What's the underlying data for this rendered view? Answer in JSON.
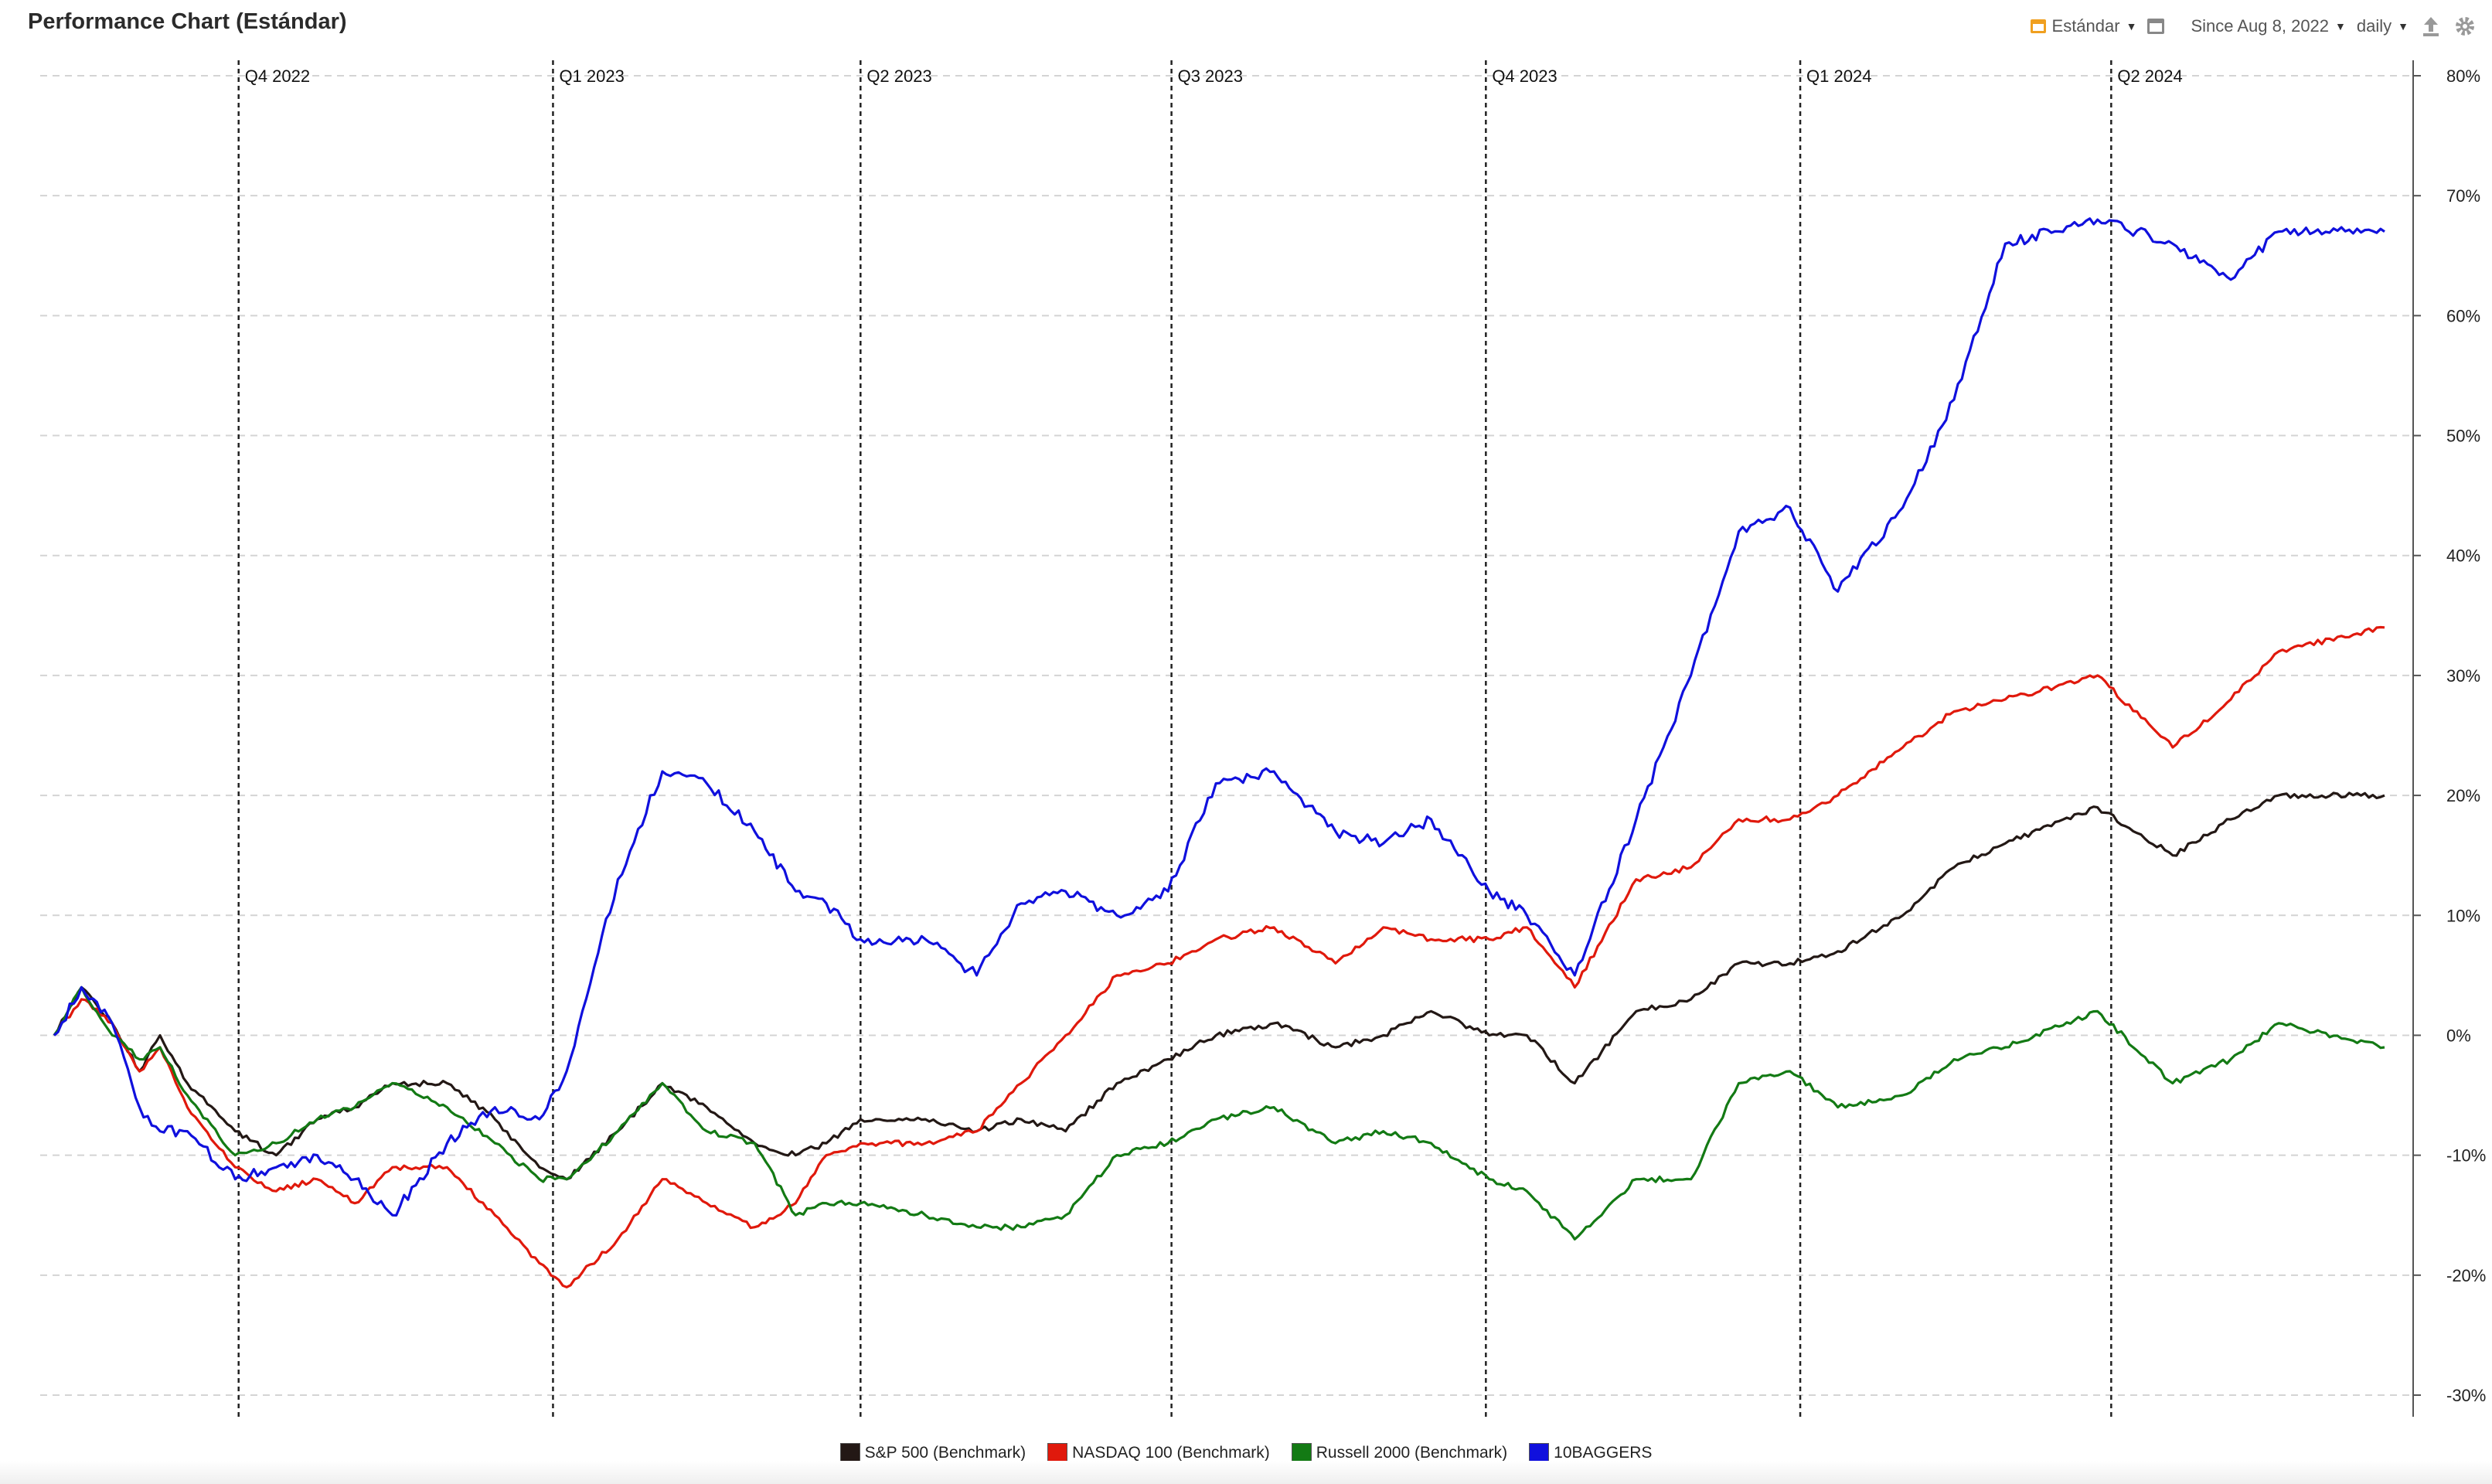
{
  "header": {
    "title": "Performance Chart (Estándar)",
    "layout_label": "Estándar",
    "range_label": "Since Aug 8, 2022",
    "interval_label": "daily"
  },
  "colors": {
    "sp500": "#231815",
    "nasdaq": "#e0190c",
    "russell": "#137a14",
    "tenbaggers": "#1010dd",
    "accent": "#f0a020"
  },
  "chart_data": {
    "type": "line",
    "x_start": "2022-08-08",
    "x_end": "2024-06-20",
    "ylim": [
      -30,
      80
    ],
    "y_ticks": [
      80,
      70,
      60,
      50,
      40,
      30,
      20,
      10,
      0,
      -10,
      -20,
      -30
    ],
    "y_tick_labels": [
      "80%",
      "70%",
      "60%",
      "50%",
      "40%",
      "30%",
      "20%",
      "10%",
      "0%",
      "-10%",
      "-20%",
      "-30%"
    ],
    "y_axis_position": "right",
    "grid": true,
    "legend_position": "bottom",
    "quarter_markers": [
      {
        "label": "Q4 2022",
        "date": "2022-10-01"
      },
      {
        "label": "Q1 2023",
        "date": "2023-01-01"
      },
      {
        "label": "Q2 2023",
        "date": "2023-04-01"
      },
      {
        "label": "Q3 2023",
        "date": "2023-07-01"
      },
      {
        "label": "Q4 2023",
        "date": "2023-10-01"
      },
      {
        "label": "Q1 2024",
        "date": "2024-01-01"
      },
      {
        "label": "Q2 2024",
        "date": "2024-04-01"
      }
    ],
    "series": [
      {
        "name": "S&P 500  (Benchmark)",
        "color": "#231815",
        "points": [
          [
            "2022-08-08",
            0
          ],
          [
            "2022-08-16",
            4
          ],
          [
            "2022-08-25",
            1
          ],
          [
            "2022-09-02",
            -3
          ],
          [
            "2022-09-08",
            0
          ],
          [
            "2022-09-16",
            -4
          ],
          [
            "2022-09-30",
            -8
          ],
          [
            "2022-10-12",
            -10
          ],
          [
            "2022-10-24",
            -7
          ],
          [
            "2022-11-04",
            -6
          ],
          [
            "2022-11-15",
            -4
          ],
          [
            "2022-12-01",
            -4
          ],
          [
            "2022-12-15",
            -7
          ],
          [
            "2022-12-28",
            -11
          ],
          [
            "2023-01-05",
            -12
          ],
          [
            "2023-01-20",
            -8
          ],
          [
            "2023-02-02",
            -4
          ],
          [
            "2023-02-15",
            -6
          ],
          [
            "2023-03-01",
            -9
          ],
          [
            "2023-03-13",
            -10
          ],
          [
            "2023-03-22",
            -9
          ],
          [
            "2023-04-01",
            -7
          ],
          [
            "2023-04-20",
            -7
          ],
          [
            "2023-05-05",
            -8
          ],
          [
            "2023-05-18",
            -7
          ],
          [
            "2023-05-31",
            -8
          ],
          [
            "2023-06-15",
            -4
          ],
          [
            "2023-06-30",
            -2
          ],
          [
            "2023-07-14",
            0
          ],
          [
            "2023-07-31",
            1
          ],
          [
            "2023-08-18",
            -1
          ],
          [
            "2023-09-01",
            0
          ],
          [
            "2023-09-15",
            2
          ],
          [
            "2023-10-02",
            0
          ],
          [
            "2023-10-13",
            0
          ],
          [
            "2023-10-27",
            -4
          ],
          [
            "2023-11-14",
            2
          ],
          [
            "2023-11-30",
            3
          ],
          [
            "2023-12-14",
            6
          ],
          [
            "2023-12-29",
            6
          ],
          [
            "2024-01-12",
            7
          ],
          [
            "2024-01-31",
            10
          ],
          [
            "2024-02-15",
            14
          ],
          [
            "2024-03-01",
            16
          ],
          [
            "2024-03-28",
            19
          ],
          [
            "2024-04-19",
            15
          ],
          [
            "2024-05-06",
            18
          ],
          [
            "2024-05-20",
            20
          ],
          [
            "2024-06-20",
            20
          ]
        ]
      },
      {
        "name": "NASDAQ 100 (Benchmark)",
        "color": "#e0190c",
        "points": [
          [
            "2022-08-08",
            0
          ],
          [
            "2022-08-16",
            3
          ],
          [
            "2022-08-25",
            1
          ],
          [
            "2022-09-02",
            -3
          ],
          [
            "2022-09-08",
            -1
          ],
          [
            "2022-09-16",
            -6
          ],
          [
            "2022-09-30",
            -11
          ],
          [
            "2022-10-12",
            -13
          ],
          [
            "2022-10-24",
            -12
          ],
          [
            "2022-11-04",
            -14
          ],
          [
            "2022-11-15",
            -11
          ],
          [
            "2022-12-01",
            -11
          ],
          [
            "2022-12-15",
            -15
          ],
          [
            "2022-12-28",
            -19
          ],
          [
            "2023-01-05",
            -21
          ],
          [
            "2023-01-20",
            -17
          ],
          [
            "2023-02-02",
            -12
          ],
          [
            "2023-02-15",
            -14
          ],
          [
            "2023-03-01",
            -16
          ],
          [
            "2023-03-13",
            -14
          ],
          [
            "2023-03-22",
            -10
          ],
          [
            "2023-04-01",
            -9
          ],
          [
            "2023-04-20",
            -9
          ],
          [
            "2023-05-05",
            -8
          ],
          [
            "2023-05-18",
            -4
          ],
          [
            "2023-05-31",
            0
          ],
          [
            "2023-06-15",
            5
          ],
          [
            "2023-06-30",
            6
          ],
          [
            "2023-07-14",
            8
          ],
          [
            "2023-07-31",
            9
          ],
          [
            "2023-08-18",
            6
          ],
          [
            "2023-09-01",
            9
          ],
          [
            "2023-09-15",
            8
          ],
          [
            "2023-10-02",
            8
          ],
          [
            "2023-10-13",
            9
          ],
          [
            "2023-10-27",
            4
          ],
          [
            "2023-11-14",
            13
          ],
          [
            "2023-11-30",
            14
          ],
          [
            "2023-12-14",
            18
          ],
          [
            "2023-12-29",
            18
          ],
          [
            "2024-01-12",
            20
          ],
          [
            "2024-01-31",
            24
          ],
          [
            "2024-02-15",
            27
          ],
          [
            "2024-03-01",
            28
          ],
          [
            "2024-03-28",
            30
          ],
          [
            "2024-04-19",
            24
          ],
          [
            "2024-05-06",
            28
          ],
          [
            "2024-05-20",
            32
          ],
          [
            "2024-06-20",
            34
          ]
        ]
      },
      {
        "name": "Russell 2000 (Benchmark)",
        "color": "#137a14",
        "points": [
          [
            "2022-08-08",
            0
          ],
          [
            "2022-08-16",
            4
          ],
          [
            "2022-08-25",
            0
          ],
          [
            "2022-09-02",
            -2
          ],
          [
            "2022-09-08",
            -1
          ],
          [
            "2022-09-16",
            -5
          ],
          [
            "2022-09-30",
            -10
          ],
          [
            "2022-10-12",
            -9
          ],
          [
            "2022-10-24",
            -7
          ],
          [
            "2022-11-04",
            -6
          ],
          [
            "2022-11-15",
            -4
          ],
          [
            "2022-12-01",
            -6
          ],
          [
            "2022-12-15",
            -9
          ],
          [
            "2022-12-28",
            -12
          ],
          [
            "2023-01-05",
            -12
          ],
          [
            "2023-01-20",
            -8
          ],
          [
            "2023-02-02",
            -4
          ],
          [
            "2023-02-15",
            -8
          ],
          [
            "2023-03-01",
            -9
          ],
          [
            "2023-03-13",
            -15
          ],
          [
            "2023-03-22",
            -14
          ],
          [
            "2023-04-01",
            -14
          ],
          [
            "2023-04-20",
            -15
          ],
          [
            "2023-05-05",
            -16
          ],
          [
            "2023-05-18",
            -16
          ],
          [
            "2023-05-31",
            -15
          ],
          [
            "2023-06-15",
            -10
          ],
          [
            "2023-06-30",
            -9
          ],
          [
            "2023-07-14",
            -7
          ],
          [
            "2023-07-31",
            -6
          ],
          [
            "2023-08-18",
            -9
          ],
          [
            "2023-09-01",
            -8
          ],
          [
            "2023-09-15",
            -9
          ],
          [
            "2023-10-02",
            -12
          ],
          [
            "2023-10-13",
            -13
          ],
          [
            "2023-10-27",
            -17
          ],
          [
            "2023-11-14",
            -12
          ],
          [
            "2023-11-30",
            -12
          ],
          [
            "2023-12-14",
            -4
          ],
          [
            "2023-12-29",
            -3
          ],
          [
            "2024-01-12",
            -6
          ],
          [
            "2024-01-31",
            -5
          ],
          [
            "2024-02-15",
            -2
          ],
          [
            "2024-03-01",
            -1
          ],
          [
            "2024-03-28",
            2
          ],
          [
            "2024-04-19",
            -4
          ],
          [
            "2024-05-06",
            -2
          ],
          [
            "2024-05-20",
            1
          ],
          [
            "2024-06-20",
            -1
          ]
        ]
      },
      {
        "name": "10BAGGERS",
        "color": "#1010dd",
        "points": [
          [
            "2022-08-08",
            0
          ],
          [
            "2022-08-16",
            4
          ],
          [
            "2022-08-25",
            1
          ],
          [
            "2022-09-02",
            -6
          ],
          [
            "2022-09-08",
            -8
          ],
          [
            "2022-09-16",
            -8
          ],
          [
            "2022-09-30",
            -12
          ],
          [
            "2022-10-12",
            -11
          ],
          [
            "2022-10-24",
            -10
          ],
          [
            "2022-11-04",
            -12
          ],
          [
            "2022-11-15",
            -15
          ],
          [
            "2022-12-01",
            -9
          ],
          [
            "2022-12-15",
            -6
          ],
          [
            "2022-12-28",
            -7
          ],
          [
            "2023-01-05",
            -3
          ],
          [
            "2023-01-20",
            13
          ],
          [
            "2023-02-02",
            22
          ],
          [
            "2023-02-15",
            21
          ],
          [
            "2023-03-01",
            17
          ],
          [
            "2023-03-13",
            12
          ],
          [
            "2023-03-22",
            11
          ],
          [
            "2023-04-01",
            8
          ],
          [
            "2023-04-20",
            8
          ],
          [
            "2023-05-05",
            5
          ],
          [
            "2023-05-18",
            11
          ],
          [
            "2023-05-31",
            12
          ],
          [
            "2023-06-15",
            10
          ],
          [
            "2023-06-30",
            12
          ],
          [
            "2023-07-14",
            21
          ],
          [
            "2023-07-31",
            22
          ],
          [
            "2023-08-18",
            17
          ],
          [
            "2023-09-01",
            16
          ],
          [
            "2023-09-15",
            18
          ],
          [
            "2023-10-02",
            12
          ],
          [
            "2023-10-13",
            10
          ],
          [
            "2023-10-27",
            5
          ],
          [
            "2023-11-14",
            18
          ],
          [
            "2023-11-30",
            30
          ],
          [
            "2023-12-14",
            42
          ],
          [
            "2023-12-29",
            44
          ],
          [
            "2024-01-12",
            37
          ],
          [
            "2024-01-31",
            44
          ],
          [
            "2024-02-15",
            53
          ],
          [
            "2024-03-01",
            66
          ],
          [
            "2024-03-28",
            68
          ],
          [
            "2024-04-19",
            66
          ],
          [
            "2024-05-06",
            63
          ],
          [
            "2024-05-20",
            67
          ],
          [
            "2024-06-20",
            67
          ]
        ]
      }
    ]
  },
  "legend": {
    "items": [
      "S&P 500  (Benchmark)",
      "NASDAQ 100 (Benchmark)",
      "Russell 2000 (Benchmark)",
      "10BAGGERS"
    ]
  }
}
